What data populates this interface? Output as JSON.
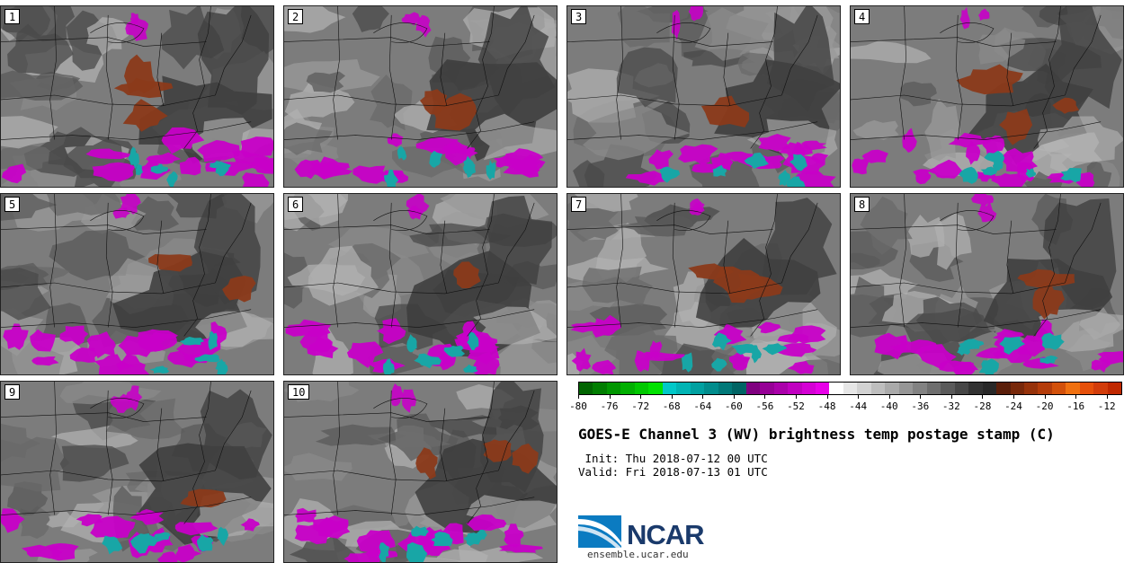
{
  "panels": [
    {
      "label": "1"
    },
    {
      "label": "2"
    },
    {
      "label": "3"
    },
    {
      "label": "4"
    },
    {
      "label": "5"
    },
    {
      "label": "6"
    },
    {
      "label": "7"
    },
    {
      "label": "8"
    },
    {
      "label": "9"
    },
    {
      "label": "10"
    }
  ],
  "colorbar": {
    "colors": [
      "#006400",
      "#007d00",
      "#009600",
      "#00af00",
      "#00c800",
      "#00e100",
      "#00c8c8",
      "#00b4b4",
      "#00a0a0",
      "#008c8c",
      "#007878",
      "#006464",
      "#800080",
      "#960096",
      "#aa00aa",
      "#c000c0",
      "#d400d4",
      "#e800e8",
      "#ffffff",
      "#e6e6e6",
      "#d2d2d2",
      "#bebebe",
      "#aaaaaa",
      "#969696",
      "#828282",
      "#6e6e6e",
      "#5a5a5a",
      "#464646",
      "#323232",
      "#282828",
      "#5a1e0a",
      "#78280a",
      "#96320a",
      "#b43c0a",
      "#d2500a",
      "#f07010",
      "#e6500a",
      "#d23c0a",
      "#c02800"
    ],
    "min": -80,
    "max": -10,
    "ticks": [
      "-80",
      "-76",
      "-72",
      "-68",
      "-64",
      "-60",
      "-56",
      "-52",
      "-48",
      "-44",
      "-40",
      "-36",
      "-32",
      "-28",
      "-24",
      "-20",
      "-16",
      "-12"
    ]
  },
  "title": "GOES-E Channel 3 (WV) brightness temp postage stamp (C)",
  "init_line": " Init: Thu 2018-07-12 00 UTC",
  "valid_line": "Valid: Fri 2018-07-13 01 UTC",
  "logo": {
    "text": "NCAR",
    "url": "ensemble.ucar.edu",
    "brand_color": "#1a3a6b",
    "swoosh_color": "#0b7bc1"
  }
}
